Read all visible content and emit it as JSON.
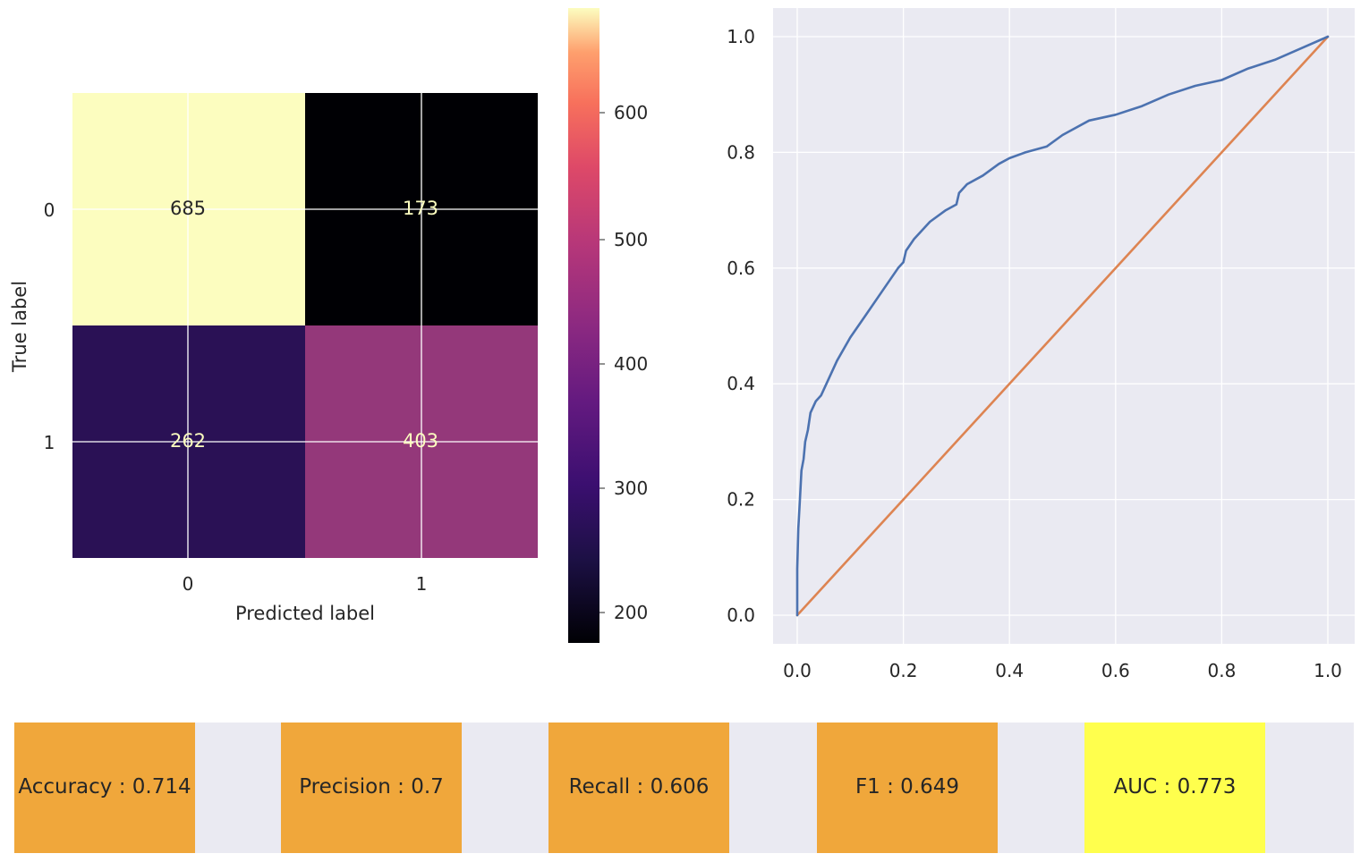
{
  "confusion_matrix": {
    "type": "heatmap",
    "xlabel": "Predicted label",
    "ylabel": "True label",
    "x_ticks": [
      "0",
      "1"
    ],
    "y_ticks": [
      "0",
      "1"
    ],
    "values": [
      [
        685,
        173
      ],
      [
        262,
        403
      ]
    ],
    "colormap": "magma",
    "colorbar": {
      "ticks": [
        "200",
        "300",
        "400",
        "500",
        "600"
      ],
      "range": [
        173,
        685
      ]
    }
  },
  "chart_data": {
    "type": "line",
    "title": "",
    "xlabel": "",
    "ylabel": "",
    "xlim": [
      0,
      1
    ],
    "ylim": [
      0,
      1
    ],
    "x_ticks": [
      "0.0",
      "0.2",
      "0.4",
      "0.6",
      "0.8",
      "1.0"
    ],
    "y_ticks": [
      "0.0",
      "0.2",
      "0.4",
      "0.6",
      "0.8",
      "1.0"
    ],
    "grid": true,
    "series": [
      {
        "color": "#4c72b0",
        "x": [
          0.0,
          0.0,
          0.002,
          0.005,
          0.008,
          0.012,
          0.015,
          0.02,
          0.025,
          0.03,
          0.035,
          0.045,
          0.06,
          0.075,
          0.1,
          0.13,
          0.16,
          0.19,
          0.2,
          0.205,
          0.22,
          0.25,
          0.28,
          0.3,
          0.305,
          0.32,
          0.35,
          0.38,
          0.4,
          0.43,
          0.47,
          0.5,
          0.52,
          0.55,
          0.6,
          0.65,
          0.7,
          0.75,
          0.8,
          0.85,
          0.9,
          0.95,
          1.0
        ],
        "y": [
          0.0,
          0.08,
          0.15,
          0.2,
          0.25,
          0.27,
          0.3,
          0.32,
          0.35,
          0.36,
          0.37,
          0.38,
          0.41,
          0.44,
          0.48,
          0.52,
          0.56,
          0.6,
          0.61,
          0.63,
          0.65,
          0.68,
          0.7,
          0.71,
          0.73,
          0.745,
          0.76,
          0.78,
          0.79,
          0.8,
          0.81,
          0.83,
          0.84,
          0.855,
          0.865,
          0.88,
          0.9,
          0.915,
          0.925,
          0.945,
          0.96,
          0.98,
          1.0
        ]
      },
      {
        "color": "#dd8452",
        "x": [
          0,
          1
        ],
        "y": [
          0,
          1
        ]
      }
    ]
  },
  "metrics": [
    {
      "label": "Accuracy : 0.714",
      "color": "#f0a73b"
    },
    {
      "label": "Precision : 0.7",
      "color": "#f0a73b"
    },
    {
      "label": "Recall : 0.606",
      "color": "#f0a73b"
    },
    {
      "label": "F1 : 0.649",
      "color": "#f0a73b"
    },
    {
      "label": "AUC : 0.773",
      "color": "#ffff4d"
    }
  ]
}
